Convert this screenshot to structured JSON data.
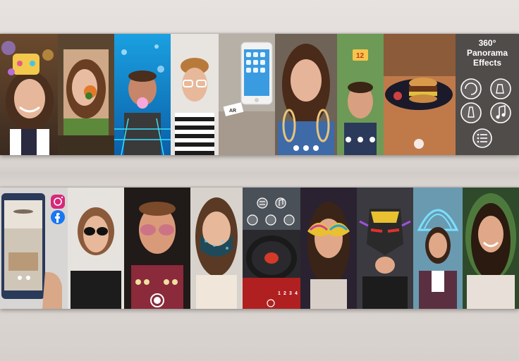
{
  "panorama_panel": {
    "title_line1": "360°",
    "title_line2": "Panorama",
    "title_line3": "Effects"
  },
  "iphone_panel": {
    "card_text": "AR"
  },
  "scene_panel": {
    "score_badge": "12"
  },
  "car_panel": {
    "numbers": [
      "1",
      "2",
      "3",
      "4"
    ]
  },
  "phone_panel": {
    "social_icons": [
      "instagram-icon",
      "facebook-icon"
    ]
  },
  "colors": {
    "instagram": "#d6297a",
    "facebook": "#1877f2",
    "button_stroke": "#ffffff"
  }
}
